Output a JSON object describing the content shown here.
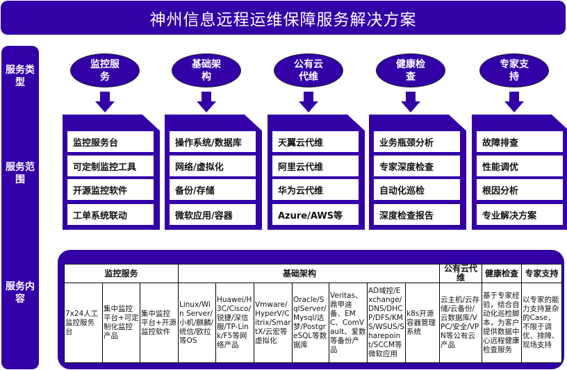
{
  "title": "神州信息远程运维保障服务解决方案",
  "side": {
    "type": "服务类型",
    "scope": "服务范围",
    "content": "服务内容"
  },
  "columns": [
    {
      "name": "监控服务",
      "items": [
        "监控服务台",
        "可定制监控工具",
        "开源监控软件",
        "工单系统联动"
      ]
    },
    {
      "name": "基础架构",
      "items": [
        "操作系统/数据库",
        "网络/虚拟化",
        "备份/存储",
        "微软应用/容器"
      ]
    },
    {
      "name": "公有云代维",
      "items": [
        "天翼云代维",
        "阿里云代维",
        "华为云代维",
        "Azure/AWS等"
      ]
    },
    {
      "name": "健康检查",
      "items": [
        "业务瓶颈分析",
        "专家深度检查",
        "自动化巡检",
        "深度检查报告"
      ]
    },
    {
      "name": "专家支持",
      "items": [
        "故障排查",
        "性能调优",
        "根因分析",
        "专业解决方案"
      ]
    }
  ],
  "table": {
    "headers": [
      "监控服务",
      "基础架构",
      "公有云代维",
      "健康检查",
      "专家支持"
    ],
    "cells": [
      "7x24人工监控服务台",
      "集中监控平台+可定制化监控产品",
      "集中监控平台+开源监控软件",
      "Linux/Win Server/小机/麒麟/统信/欧拉等OS",
      "Huawei/H3C/Cisco/锐捷/深信服/TP-Link/F5等网络产品",
      "Vmware/HyperV/Citrix/SmartX/云宏等虚拟化",
      "Oracle/SqlServer/Mysql/达梦/PostgreSQL等数据库",
      "Veritas、鼎甲迪备、EMC、ComVault、爱数等备份产品",
      "AD域控/Exchange/DNS/DHCP/DFS/KMS/WSUS/Sharepoint/SCCM等微软应用",
      "k8s开源容器管理系统",
      "云主机/云存储/云备份/云数据库/VPC/安全/VPN等公有云产品",
      "基于专家经验，结合自动化巡检脚本，为客户提供数据中心远程健康检查服务",
      "以专家的能力支持复杂的Case，不限于调优、排障、现场支持"
    ]
  },
  "colors": {
    "primary": "#3300a8"
  }
}
